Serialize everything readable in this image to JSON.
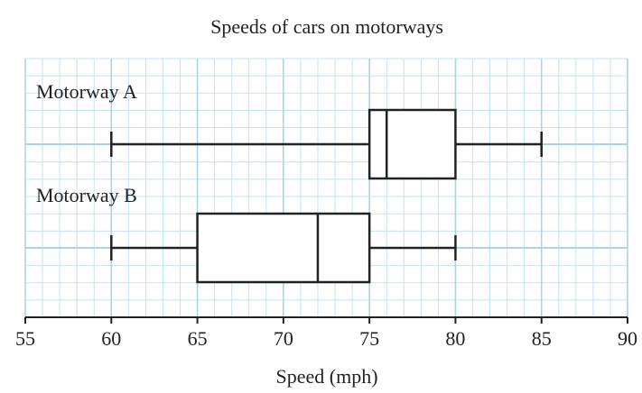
{
  "chart_data": {
    "type": "boxplot",
    "title": "Speeds of cars on motorways",
    "xlabel": "Speed (mph)",
    "boxes": [
      {
        "label": "Motorway A",
        "min": 60,
        "q1": 75,
        "median": 76,
        "q3": 80,
        "max": 85
      },
      {
        "label": "Motorway B",
        "min": 60,
        "q1": 65,
        "median": 72,
        "q3": 75,
        "max": 80
      }
    ],
    "color": "#222222",
    "xlim": [
      55,
      90
    ],
    "xticks": [
      55,
      60,
      65,
      70,
      75,
      80,
      85,
      90
    ],
    "grid": true
  }
}
